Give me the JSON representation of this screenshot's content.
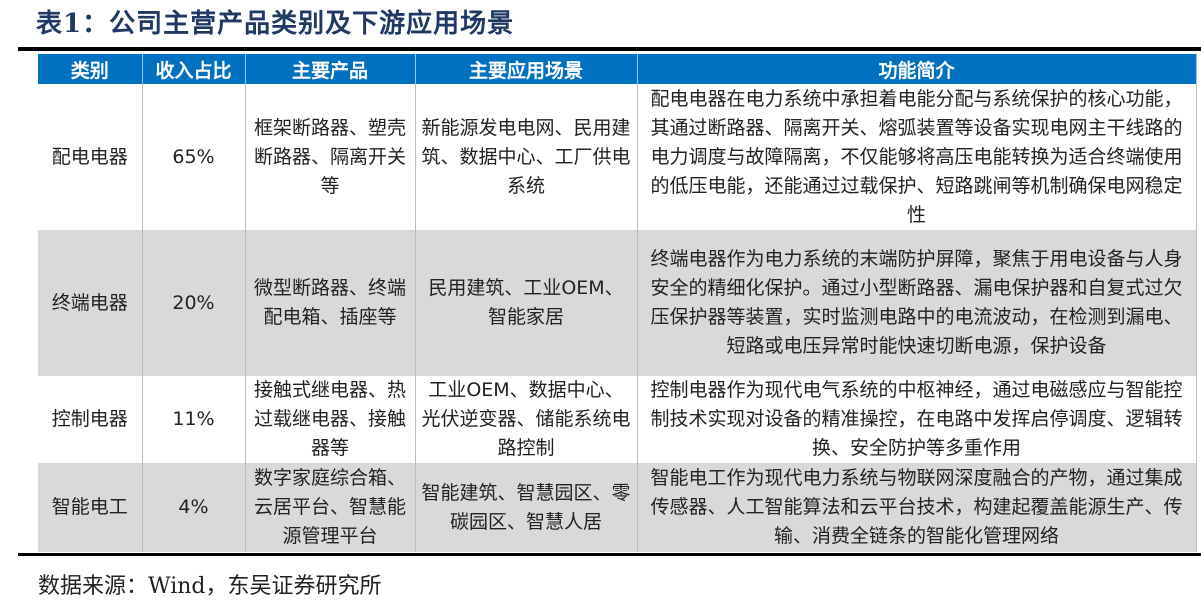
{
  "title": "表1：公司主营产品类别及下游应用场景",
  "headers": [
    "类别",
    "收入占比",
    "主要产品",
    "主要应用场景",
    "功能简介"
  ],
  "rows": [
    {
      "category": "配电电器",
      "share": "65%",
      "products": "框架断路器、塑壳断路器、隔离开关等",
      "scenarios": "新能源发电电网、民用建筑、数据中心、工厂供电系统",
      "description": "配电电器在电力系统中承担着电能分配与系统保护的核心功能，其通过断路器、隔离开关、熔弧装置等设备实现电网主干线路的电力调度与故障隔离，不仅能够将高压电能转换为适合终端使用的低压电能，还能通过过载保护、短路跳闸等机制确保电网稳定性"
    },
    {
      "category": "终端电器",
      "share": "20%",
      "products": "微型断路器、终端配电箱、插座等",
      "scenarios": "民用建筑、工业OEM、智能家居",
      "description": "终端电器作为电力系统的末端防护屏障，聚焦于用电设备与人身安全的精细化保护。通过小型断路器、漏电保护器和自复式过欠压保护器等装置，实时监测电路中的电流波动，在检测到漏电、短路或电压异常时能快速切断电源，保护设备"
    },
    {
      "category": "控制电器",
      "share": "11%",
      "products": "接触式继电器、热过载继电器、接触器等",
      "scenarios": "工业OEM、数据中心、光伏逆变器、储能系统电路控制",
      "description": "控制电器作为现代电气系统的中枢神经，通过电磁感应与智能控制技术实现对设备的精准操控，在电路中发挥启停调度、逻辑转换、安全防护等多重作用"
    },
    {
      "category": "智能电工",
      "share": "4%",
      "products": "数字家庭综合箱、云居平台、智慧能源管理平台",
      "scenarios": "智能建筑、智慧园区、零碳园区、智慧人居",
      "description": "智能电工作为现代电力系统与物联网深度融合的产物，通过集成传感器、人工智能算法和云平台技术，构建起覆盖能源生产、传输、消费全链条的智能化管理网络"
    }
  ],
  "source": "数据来源：Wind，东吴证券研究所",
  "colors": {
    "header_bg": "#0070c0",
    "title": "#1f3864",
    "stripe": "#d9d9d9"
  }
}
